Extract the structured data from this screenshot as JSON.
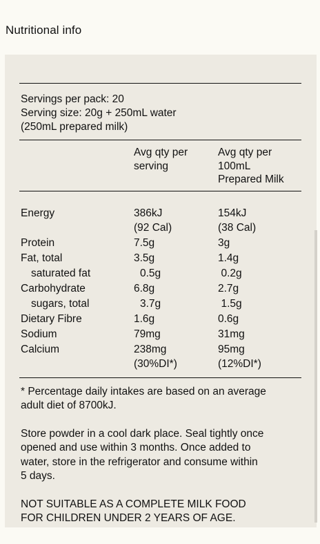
{
  "page": {
    "title": "Nutritional info"
  },
  "servings": {
    "per_pack": "Servings per pack: 20",
    "size": "Serving size: 20g + 250mL water",
    "prepared": "(250mL prepared milk)"
  },
  "columns": {
    "serving": [
      "Avg qty per",
      "serving"
    ],
    "per100": [
      "Avg qty per",
      "100mL",
      "Prepared Milk"
    ]
  },
  "rows": [
    {
      "name": "Energy",
      "serving": [
        "386kJ",
        "(92 Cal)"
      ],
      "per100": [
        "154kJ",
        "(38 Cal)"
      ]
    },
    {
      "name": "Protein",
      "serving": [
        "7.5g"
      ],
      "per100": [
        "3g"
      ]
    },
    {
      "name": "Fat, total",
      "serving": [
        "3.5g"
      ],
      "per100": [
        "1.4g"
      ]
    },
    {
      "name": "saturated fat",
      "serving": [
        "0.5g"
      ],
      "per100": [
        "0.2g"
      ]
    },
    {
      "name": "Carbohydrate",
      "serving": [
        "6.8g"
      ],
      "per100": [
        "2.7g"
      ]
    },
    {
      "name": "sugars, total",
      "serving": [
        "3.7g"
      ],
      "per100": [
        "1.5g"
      ]
    },
    {
      "name": "Dietary Fibre",
      "serving": [
        "1.6g"
      ],
      "per100": [
        "0.6g"
      ]
    },
    {
      "name": "Sodium",
      "serving": [
        "79mg"
      ],
      "per100": [
        "31mg"
      ]
    },
    {
      "name": "Calcium",
      "serving": [
        "238mg",
        "(30%DI*)"
      ],
      "per100": [
        "95mg",
        "(12%DI*)"
      ]
    }
  ],
  "notes": {
    "footnote": [
      "* Percentage daily intakes are based on an average",
      "adult diet of 8700kJ."
    ],
    "storage": [
      "Store powder in a cool dark place. Seal tightly once",
      "opened and use within 3 months. Once added to",
      "water, store in the refrigerator and consume within",
      "5 days."
    ],
    "warning": [
      "NOT SUITABLE AS A COMPLETE MILK FOOD",
      "FOR CHILDREN UNDER 2 YEARS OF AGE."
    ]
  }
}
